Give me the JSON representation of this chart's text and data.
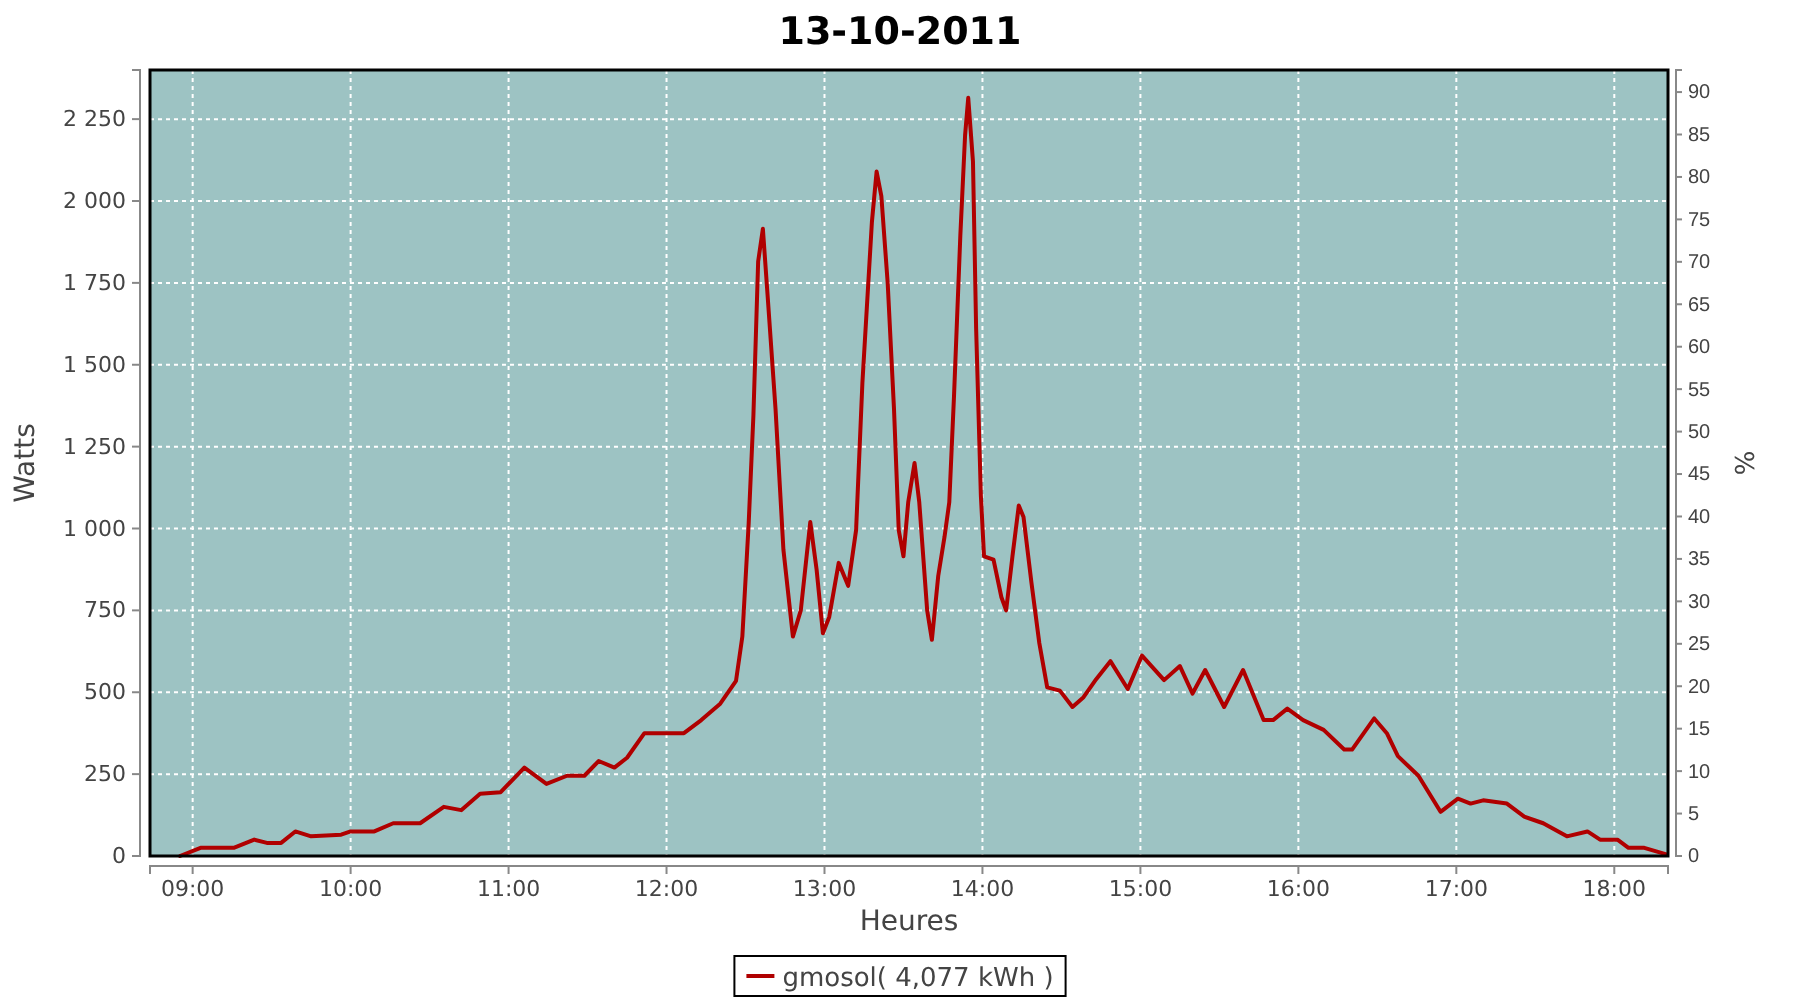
{
  "chart_data": {
    "type": "line",
    "title": "13-10-2011",
    "xlabel": "Heures",
    "ylabel": "Watts",
    "y2label": "%",
    "xlim": [
      8.73,
      18.34
    ],
    "xticks": [
      {
        "value": 9,
        "label": "09:00"
      },
      {
        "value": 10,
        "label": "10:00"
      },
      {
        "value": 11,
        "label": "11:00"
      },
      {
        "value": 12,
        "label": "12:00"
      },
      {
        "value": 13,
        "label": "13:00"
      },
      {
        "value": 14,
        "label": "14:00"
      },
      {
        "value": 15,
        "label": "15:00"
      },
      {
        "value": 16,
        "label": "16:00"
      },
      {
        "value": 17,
        "label": "17:00"
      },
      {
        "value": 18,
        "label": "18:00"
      }
    ],
    "ylim": [
      0,
      2400
    ],
    "yticks": [
      0,
      250,
      500,
      750,
      {
        "value": 1000,
        "label": "1 000"
      },
      {
        "value": 1250,
        "label": "1 250"
      },
      {
        "value": 1500,
        "label": "1 500"
      },
      {
        "value": 1750,
        "label": "1 750"
      },
      {
        "value": 2000,
        "label": "2 000"
      },
      {
        "value": 2250,
        "label": "2 250"
      }
    ],
    "y2lim": [
      0,
      92.6
    ],
    "y2ticks": [
      0,
      5,
      10,
      15,
      20,
      25,
      30,
      35,
      40,
      45,
      50,
      55,
      60,
      65,
      70,
      75,
      80,
      85,
      90
    ],
    "grid": true,
    "legend": "bottom",
    "marker": "none",
    "line_style": "solid",
    "series": [
      {
        "name": "gmosol( 4,077 kWh )",
        "color": "#b00000",
        "x": [
          8.92,
          9.05,
          9.26,
          9.39,
          9.47,
          9.56,
          9.65,
          9.75,
          9.94,
          10.0,
          10.15,
          10.27,
          10.44,
          10.59,
          10.7,
          10.82,
          10.95,
          11.1,
          11.24,
          11.37,
          11.48,
          11.57,
          11.67,
          11.75,
          11.86,
          12.11,
          12.22,
          12.34,
          12.44,
          12.48,
          12.52,
          12.55,
          12.58,
          12.61,
          12.64,
          12.69,
          12.74,
          12.8,
          12.85,
          12.91,
          12.95,
          12.99,
          13.03,
          13.09,
          13.15,
          13.2,
          13.24,
          13.3,
          13.33,
          13.36,
          13.4,
          13.44,
          13.47,
          13.5,
          13.53,
          13.57,
          13.6,
          13.65,
          13.68,
          13.72,
          13.76,
          13.79,
          13.82,
          13.86,
          13.89,
          13.91,
          13.94,
          13.96,
          13.99,
          14.01,
          14.07,
          14.12,
          14.15,
          14.19,
          14.23,
          14.26,
          14.31,
          14.36,
          14.41,
          14.49,
          14.57,
          14.64,
          14.72,
          14.81,
          14.92,
          15.01,
          15.15,
          15.25,
          15.33,
          15.41,
          15.53,
          15.65,
          15.78,
          15.84,
          15.93,
          16.03,
          16.16,
          16.29,
          16.34,
          16.48,
          16.56,
          16.63,
          16.76,
          16.9,
          17.01,
          17.09,
          17.17,
          17.32,
          17.43,
          17.55,
          17.7,
          17.83,
          17.91,
          18.02,
          18.09,
          18.19,
          18.33
        ],
        "values": [
          0,
          25,
          25,
          50,
          40,
          40,
          75,
          60,
          65,
          75,
          75,
          100,
          100,
          150,
          140,
          190,
          195,
          270,
          220,
          245,
          245,
          290,
          270,
          300,
          375,
          375,
          415,
          465,
          535,
          670,
          1015,
          1345,
          1815,
          1915,
          1710,
          1365,
          935,
          670,
          750,
          1020,
          875,
          680,
          730,
          895,
          825,
          995,
          1445,
          1935,
          2090,
          2015,
          1750,
          1365,
          995,
          915,
          1080,
          1200,
          1080,
          750,
          660,
          855,
          975,
          1080,
          1405,
          1895,
          2200,
          2315,
          2120,
          1610,
          1100,
          915,
          905,
          790,
          750,
          915,
          1070,
          1035,
          835,
          650,
          515,
          505,
          455,
          485,
          540,
          595,
          510,
          612,
          537,
          580,
          496,
          568,
          455,
          568,
          415,
          415,
          450,
          415,
          385,
          325,
          325,
          420,
          375,
          305,
          245,
          135,
          175,
          160,
          170,
          160,
          120,
          100,
          60,
          75,
          50,
          50,
          25,
          25,
          5
        ]
      }
    ]
  }
}
